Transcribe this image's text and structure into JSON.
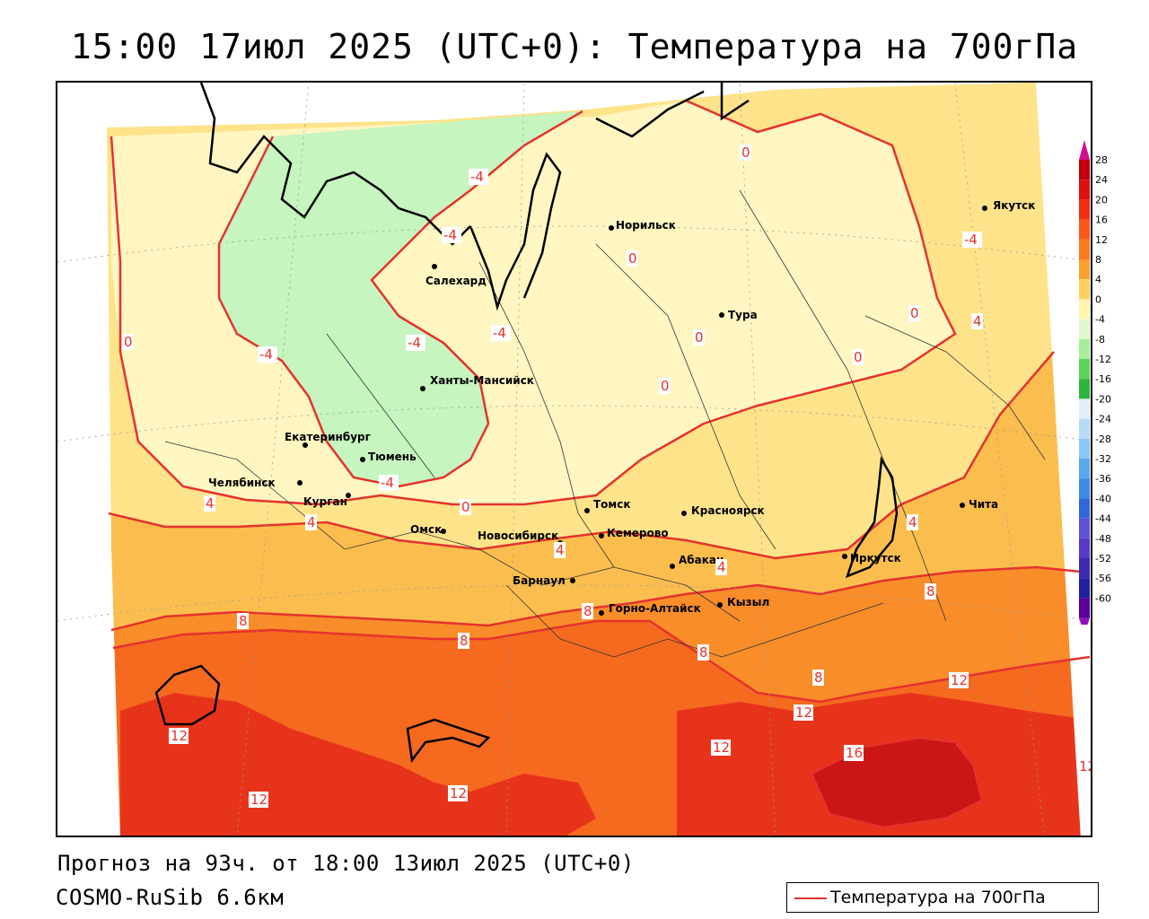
{
  "title": "15:00 17июл 2025 (UTC+0): Температура на 700гПа",
  "forecast_text": "Прогноз на 93ч. от 18:00 13июл 2025 (UTC+0)",
  "model_text": "COSMO-RuSib 6.6км",
  "legend": {
    "label": "Температура на 700гПа",
    "line_color": "#e5322d"
  },
  "colors": {
    "cold_green": "#c6f5c0",
    "pale_yellow": "#fff6c2",
    "yellow": "#ffe38a",
    "light_orange": "#fbbe4e",
    "orange": "#f88d2a",
    "red_orange": "#f56a1f",
    "red": "#e8331b",
    "dark_red": "#cc1515",
    "contour": "#e5322d"
  },
  "cities": [
    {
      "name": "Салехард"
    },
    {
      "name": "Норильск"
    },
    {
      "name": "Якутск"
    },
    {
      "name": "Тура"
    },
    {
      "name": "Ханты-Мансийск"
    },
    {
      "name": "Екатеринбург"
    },
    {
      "name": "Тюмень"
    },
    {
      "name": "Челябинск"
    },
    {
      "name": "Курган"
    },
    {
      "name": "Омск"
    },
    {
      "name": "Новосибирск"
    },
    {
      "name": "Томск"
    },
    {
      "name": "Кемерово"
    },
    {
      "name": "Красноярск"
    },
    {
      "name": "Барнаул"
    },
    {
      "name": "Абакан"
    },
    {
      "name": "Горно-Алтайск"
    },
    {
      "name": "Кызыл"
    },
    {
      "name": "Иркутск"
    },
    {
      "name": "Чита"
    }
  ],
  "contour_labels": [
    "-4",
    "-4",
    "-4",
    "-4",
    "-4",
    "-4",
    "-4",
    "0",
    "0",
    "0",
    "0",
    "0",
    "0",
    "0",
    "0",
    "4",
    "4",
    "4",
    "4",
    "4",
    "4",
    "8",
    "8",
    "8",
    "8",
    "8",
    "8",
    "12",
    "12",
    "12",
    "12",
    "12",
    "12",
    "12",
    "16"
  ],
  "color_scale": {
    "values": [
      "28",
      "24",
      "20",
      "16",
      "12",
      "8",
      "4",
      "0",
      "-4",
      "-8",
      "-12",
      "-16",
      "-20",
      "-24",
      "-28",
      "-32",
      "-36",
      "-40",
      "-44",
      "-48",
      "-52",
      "-56",
      "-60"
    ],
    "colors": [
      "#c00010",
      "#dd1010",
      "#f03010",
      "#f85818",
      "#fa7a22",
      "#fca030",
      "#ffd060",
      "#fff4b0",
      "#e0f8d0",
      "#a6ee9c",
      "#5ed35a",
      "#2cb53a",
      "#e2eef8",
      "#b6dcf6",
      "#8cc8f4",
      "#5aa8ee",
      "#3c8ae8",
      "#3068dc",
      "#6050d4",
      "#5a3ac8",
      "#3c2ab0",
      "#2020a0",
      "#5a0098"
    ],
    "top_arrow_color": "#d01090",
    "bottom_arrow_color": "#9010c0"
  }
}
